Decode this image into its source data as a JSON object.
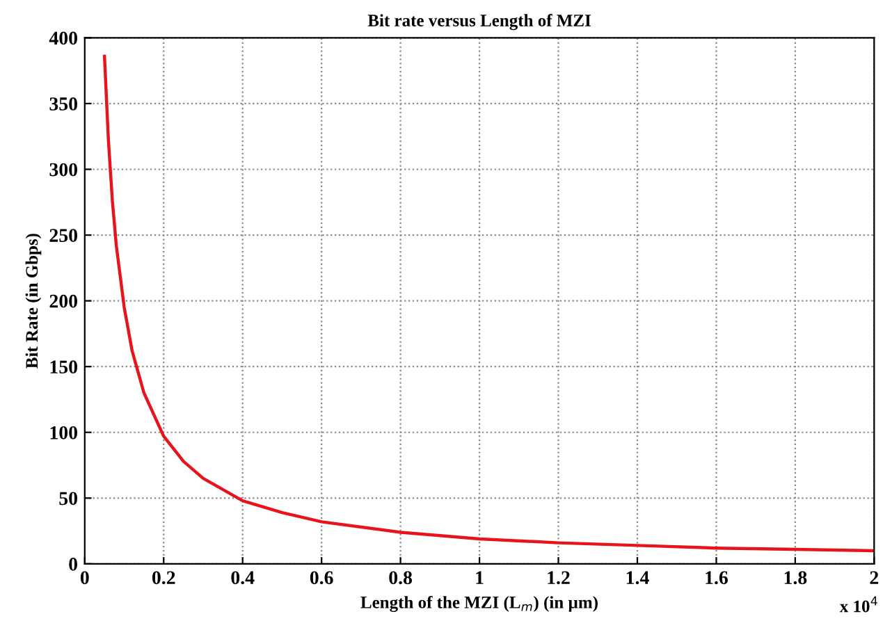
{
  "chart_data": {
    "type": "line",
    "title": "Bit rate versus Length of MZI",
    "xlabel": "Length of the MZI (L$_{m}$) (in µm)",
    "ylabel": "Bit Rate (in Gbps)",
    "annotations": [
      "x 10$^{4}$"
    ],
    "series": [
      {
        "color": "#e8141c",
        "x": [
          0.05,
          0.06,
          0.07,
          0.08,
          0.1,
          0.12,
          0.15,
          0.2,
          0.25,
          0.3,
          0.4,
          0.5,
          0.6,
          0.8,
          1.0,
          1.2,
          1.4,
          1.6,
          1.8,
          2.0
        ],
        "values": [
          386,
          322,
          276,
          242,
          195,
          162,
          130,
          97,
          78,
          65,
          48,
          39,
          32,
          24,
          19,
          16,
          14,
          12,
          11,
          10
        ]
      }
    ],
    "xlim": [
      0,
      2
    ],
    "xticks": [
      0,
      0.2,
      0.4,
      0.6,
      0.8,
      1,
      1.2,
      1.4,
      1.6,
      1.8,
      2
    ],
    "ylim": [
      0,
      400
    ],
    "yticks": [
      0,
      50,
      100,
      150,
      200,
      250,
      300,
      350,
      400
    ],
    "grid": true,
    "line_style": "solid",
    "marker": "none",
    "legend": false
  }
}
